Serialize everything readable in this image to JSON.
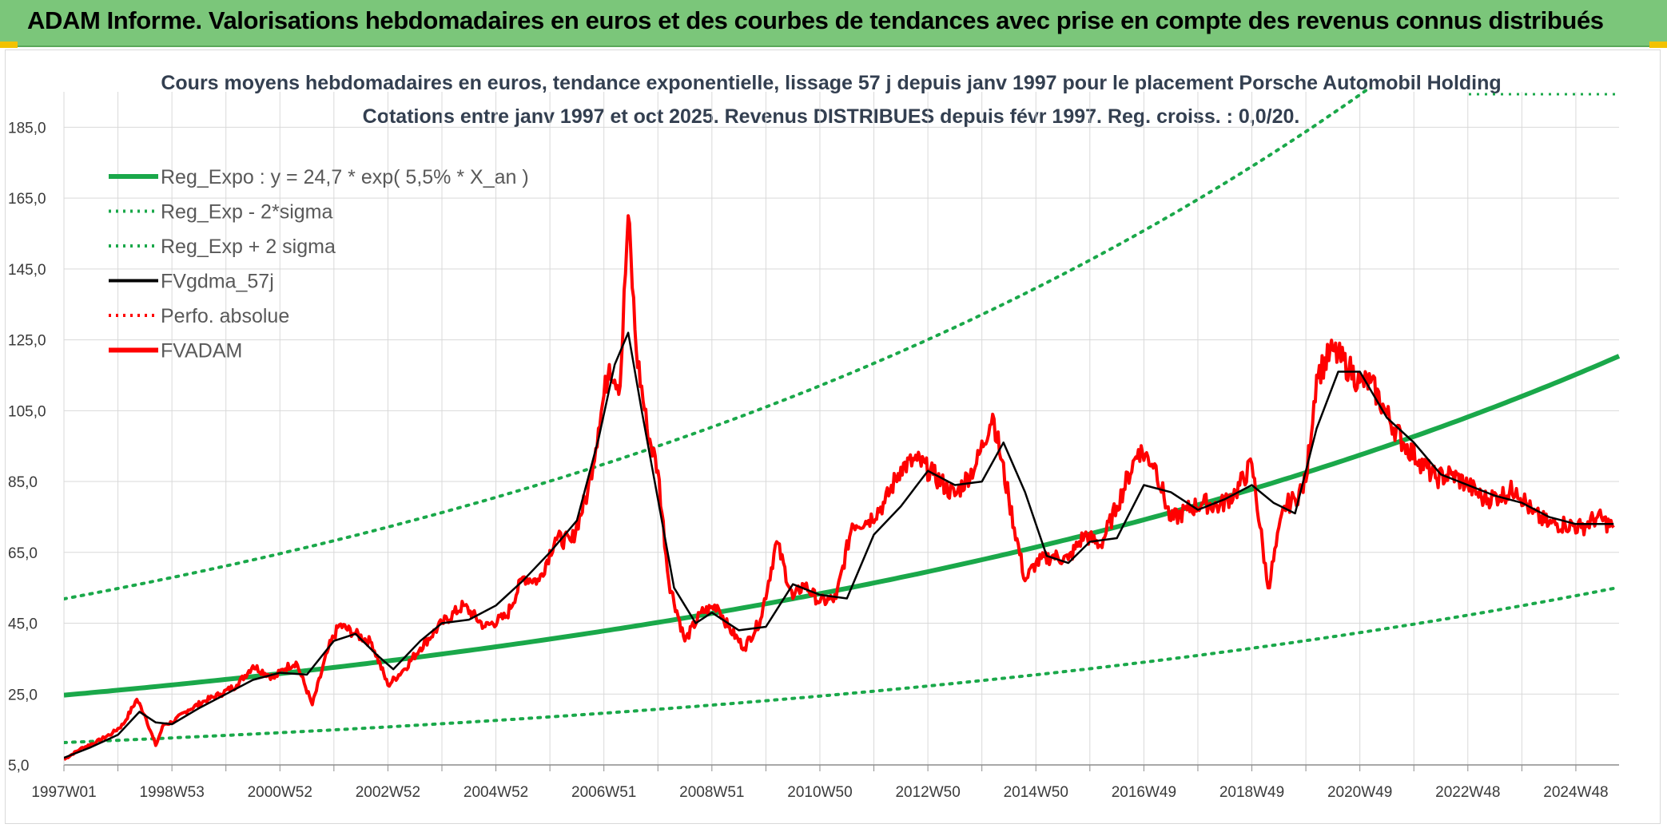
{
  "header": {
    "title": "ADAM Informe. Valorisations hebdomadaires en euros et des courbes de tendances avec prise en compte des revenus connus distribués"
  },
  "colors": {
    "banner": "#7bc67a",
    "trend": "#1aa84a",
    "band": "#1aa84a",
    "gdma": "#000000",
    "adam": "#ff0000",
    "perfo": "#ff0000"
  },
  "chart_data": {
    "type": "line",
    "title": "Cours moyens hebdomadaires en euros, tendance exponentielle, lissage 57 j depuis janv 1997 pour le placement Porsche Automobil Holding",
    "subtitle": "Cotations entre janv 1997 et oct 2025. Revenus DISTRIBUES depuis févr 1997. Reg. croiss. : 0,0/20.",
    "xlabel": "",
    "ylabel": "",
    "xlim": [
      1997.0,
      2025.8
    ],
    "ylim": [
      5,
      195
    ],
    "yticks": [
      "5,0",
      "25,0",
      "45,0",
      "65,0",
      "85,0",
      "105,0",
      "125,0",
      "145,0",
      "165,0",
      "185,0"
    ],
    "ytick_values": [
      5,
      25,
      45,
      65,
      85,
      105,
      125,
      145,
      165,
      185
    ],
    "xticks": [
      "1997W01",
      "1998W53",
      "2000W52",
      "2002W52",
      "2004W52",
      "2006W51",
      "2008W51",
      "2010W50",
      "2012W50",
      "2014W50",
      "2016W49",
      "2018W49",
      "2020W49",
      "2022W48",
      "2024W48"
    ],
    "xtick_values": [
      1997.0,
      1999.0,
      2001.0,
      2003.0,
      2005.0,
      2007.0,
      2009.0,
      2011.0,
      2013.0,
      2015.0,
      2017.0,
      2019.0,
      2021.0,
      2023.0,
      2025.0
    ],
    "legend": [
      {
        "label": "Reg_Expo : y = 24,7 * exp( 5,5% *  X_an )",
        "style": "solid-thick",
        "color": "#1aa84a"
      },
      {
        "label": "Reg_Exp - 2*sigma",
        "style": "dotted",
        "color": "#1aa84a"
      },
      {
        "label": "Reg_Exp + 2 sigma",
        "style": "dotted",
        "color": "#1aa84a"
      },
      {
        "label": "FVgdma_57j",
        "style": "solid",
        "color": "#000000"
      },
      {
        "label": "Perfo. absolue",
        "style": "dotted",
        "color": "#ff0000"
      },
      {
        "label": "FVADAM",
        "style": "solid-thick",
        "color": "#ff0000"
      }
    ],
    "trend": {
      "a": 24.7,
      "b": 0.055,
      "lower_factor": 0.458,
      "upper_factor": 2.1
    },
    "series": [
      {
        "name": "FVADAM",
        "x": [
          1997.0,
          1997.3,
          1997.6,
          1997.9,
          1998.1,
          1998.35,
          1998.5,
          1998.7,
          1998.85,
          1999.0,
          1999.3,
          1999.6,
          1999.9,
          2000.2,
          2000.5,
          2000.9,
          2001.05,
          2001.3,
          2001.6,
          2001.9,
          2002.1,
          2002.4,
          2002.7,
          2003.0,
          2003.3,
          2003.6,
          2004.0,
          2004.4,
          2004.8,
          2005.2,
          2005.5,
          2005.8,
          2006.1,
          2006.4,
          2006.7,
          2006.9,
          2007.1,
          2007.3,
          2007.45,
          2007.6,
          2007.8,
          2008.0,
          2008.2,
          2008.5,
          2008.8,
          2009.1,
          2009.3,
          2009.6,
          2009.9,
          2010.2,
          2010.5,
          2010.7,
          2011.0,
          2011.3,
          2011.6,
          2011.9,
          2012.2,
          2012.5,
          2012.8,
          2013.1,
          2013.5,
          2013.9,
          2014.2,
          2014.5,
          2014.8,
          2015.0,
          2015.3,
          2015.6,
          2015.9,
          2016.2,
          2016.5,
          2016.9,
          2017.2,
          2017.5,
          2017.8,
          2018.1,
          2018.4,
          2018.7,
          2019.0,
          2019.3,
          2019.6,
          2019.8,
          2020.0,
          2020.2,
          2020.5,
          2020.8,
          2021.0,
          2021.2,
          2021.5,
          2021.8,
          2022.1,
          2022.4,
          2022.7,
          2023.0,
          2023.3,
          2023.6,
          2023.9,
          2024.2,
          2024.5,
          2024.8,
          2025.1,
          2025.4,
          2025.7
        ],
        "values": [
          6.5,
          9.5,
          11.5,
          14.0,
          16.5,
          23.5,
          19.0,
          10.5,
          16.5,
          17.0,
          20.5,
          23.0,
          25.0,
          27.5,
          33.0,
          29.5,
          32.0,
          34.0,
          22.0,
          38.0,
          44.5,
          42.0,
          39.5,
          27.5,
          32.0,
          38.0,
          45.0,
          50.0,
          44.0,
          47.0,
          58.0,
          57.0,
          69.0,
          68.0,
          82.0,
          100.0,
          118.0,
          112.0,
          160.0,
          122.0,
          100.0,
          88.0,
          57.0,
          40.0,
          48.0,
          50.0,
          44.0,
          38.0,
          46.0,
          68.0,
          52.0,
          56.0,
          51.0,
          52.0,
          73.0,
          74.0,
          79.0,
          89.0,
          91.0,
          87.0,
          81.0,
          90.0,
          104.0,
          80.0,
          57.0,
          62.0,
          64.0,
          63.0,
          70.0,
          67.0,
          78.0,
          94.0,
          90.0,
          74.0,
          77.0,
          79.0,
          78.0,
          82.0,
          90.0,
          55.0,
          78.0,
          80.0,
          85.0,
          115.0,
          122.0,
          117.0,
          113.0,
          113.0,
          104.0,
          96.0,
          91.0,
          86.0,
          87.0,
          84.0,
          80.0,
          81.0,
          83.0,
          76.0,
          73.0,
          73.0,
          72.0,
          75.0,
          72.0
        ]
      },
      {
        "name": "FVgdma_57j",
        "x": [
          1997.0,
          1997.5,
          1998.0,
          1998.4,
          1998.7,
          1999.0,
          1999.5,
          2000.0,
          2000.5,
          2001.0,
          2001.5,
          2002.0,
          2002.4,
          2002.8,
          2003.1,
          2003.6,
          2004.0,
          2004.5,
          2005.0,
          2005.5,
          2006.0,
          2006.5,
          2006.9,
          2007.2,
          2007.45,
          2007.7,
          2008.0,
          2008.3,
          2008.7,
          2009.0,
          2009.5,
          2010.0,
          2010.5,
          2011.0,
          2011.5,
          2012.0,
          2012.5,
          2013.0,
          2013.5,
          2014.0,
          2014.4,
          2014.8,
          2015.2,
          2015.6,
          2016.0,
          2016.5,
          2017.0,
          2017.5,
          2018.0,
          2018.5,
          2019.0,
          2019.4,
          2019.8,
          2020.2,
          2020.6,
          2021.0,
          2021.5,
          2022.0,
          2022.5,
          2023.0,
          2023.5,
          2024.0,
          2024.5,
          2025.0,
          2025.7
        ],
        "values": [
          7.0,
          10.0,
          13.5,
          20.0,
          17.0,
          16.5,
          21.0,
          25.0,
          29.0,
          31.0,
          30.5,
          40.0,
          42.0,
          36.0,
          32.0,
          40.0,
          45.0,
          46.0,
          50.0,
          57.0,
          65.0,
          74.0,
          97.0,
          118.0,
          127.0,
          105.0,
          80.0,
          55.0,
          45.0,
          48.0,
          43.0,
          44.0,
          56.0,
          53.0,
          52.0,
          70.0,
          78.0,
          88.0,
          84.0,
          85.0,
          96.0,
          82.0,
          64.0,
          62.0,
          68.0,
          69.0,
          84.0,
          82.0,
          77.0,
          80.0,
          84.0,
          79.0,
          76.0,
          100.0,
          116.0,
          116.0,
          103.0,
          96.0,
          87.0,
          84.0,
          81.0,
          79.0,
          75.0,
          73.0,
          73.0
        ]
      }
    ]
  }
}
